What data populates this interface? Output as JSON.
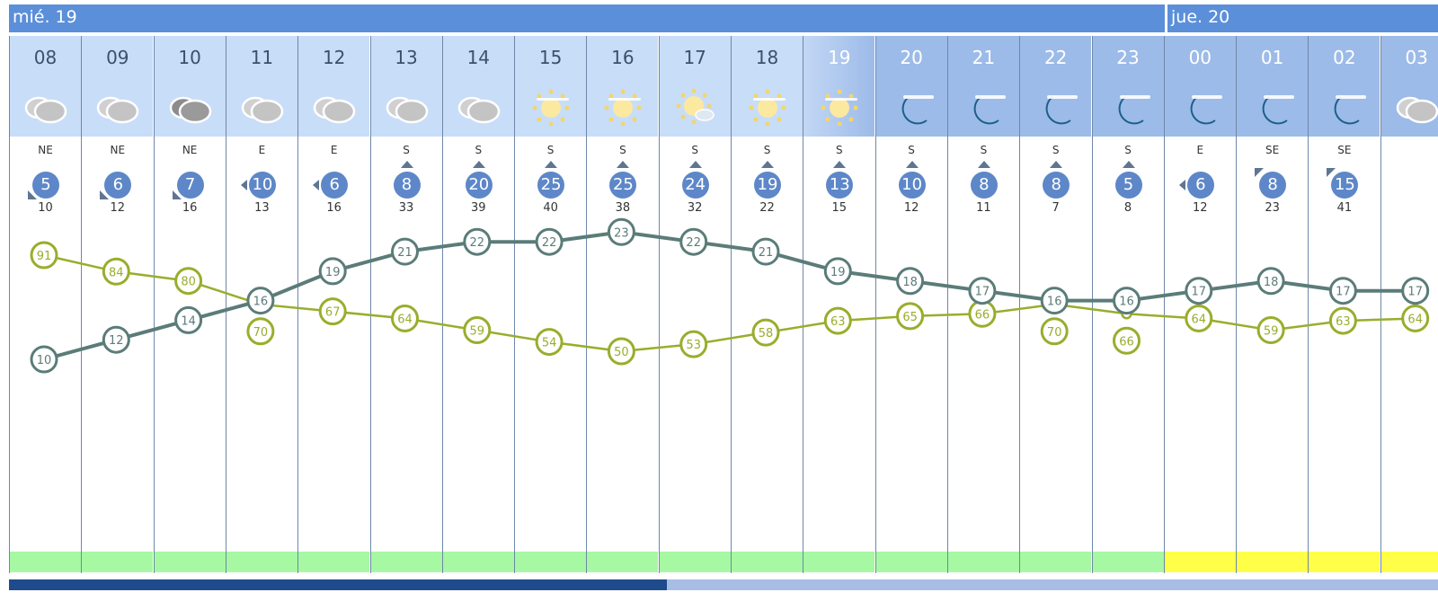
{
  "days": [
    {
      "label": "mié. 19"
    },
    {
      "label": "jue. 20"
    }
  ],
  "hours": [
    {
      "hour": "08",
      "icon": "cloudy-icon",
      "phase": "day",
      "dir": "NE",
      "speed": "5",
      "gust": "10",
      "temp": 10,
      "humidity": 91,
      "risk": "green"
    },
    {
      "hour": "09",
      "icon": "cloudy-icon",
      "phase": "day",
      "dir": "NE",
      "speed": "6",
      "gust": "12",
      "temp": 12,
      "humidity": 84,
      "risk": "green"
    },
    {
      "hour": "10",
      "icon": "overcast-icon",
      "phase": "day",
      "dir": "NE",
      "speed": "7",
      "gust": "16",
      "temp": 14,
      "humidity": 80,
      "risk": "green"
    },
    {
      "hour": "11",
      "icon": "cloudy-icon",
      "phase": "day",
      "dir": "E",
      "speed": "10",
      "gust": "13",
      "temp": 16,
      "humidity": 70,
      "risk": "green"
    },
    {
      "hour": "12",
      "icon": "cloudy-icon",
      "phase": "day",
      "dir": "E",
      "speed": "6",
      "gust": "16",
      "temp": 19,
      "humidity": 67,
      "risk": "green"
    },
    {
      "hour": "13",
      "icon": "cloudy-icon",
      "phase": "day",
      "dir": "S",
      "speed": "8",
      "gust": "33",
      "temp": 21,
      "humidity": 64,
      "risk": "green"
    },
    {
      "hour": "14",
      "icon": "cloudy-icon",
      "phase": "day",
      "dir": "S",
      "speed": "20",
      "gust": "39",
      "temp": 22,
      "humidity": 59,
      "risk": "green"
    },
    {
      "hour": "15",
      "icon": "hazy-sun-icon",
      "phase": "day",
      "dir": "S",
      "speed": "25",
      "gust": "40",
      "temp": 22,
      "humidity": 54,
      "risk": "green"
    },
    {
      "hour": "16",
      "icon": "hazy-sun-icon",
      "phase": "day",
      "dir": "S",
      "speed": "25",
      "gust": "38",
      "temp": 23,
      "humidity": 50,
      "risk": "green"
    },
    {
      "hour": "17",
      "icon": "sun-cloud-icon",
      "phase": "day",
      "dir": "S",
      "speed": "24",
      "gust": "32",
      "temp": 22,
      "humidity": 53,
      "risk": "green"
    },
    {
      "hour": "18",
      "icon": "hazy-sun-icon",
      "phase": "day",
      "dir": "S",
      "speed": "19",
      "gust": "22",
      "temp": 21,
      "humidity": 58,
      "risk": "green"
    },
    {
      "hour": "19",
      "icon": "hazy-sun-icon",
      "phase": "dusk",
      "dir": "S",
      "speed": "13",
      "gust": "15",
      "temp": 19,
      "humidity": 63,
      "risk": "green"
    },
    {
      "hour": "20",
      "icon": "hazy-moon-icon",
      "phase": "night",
      "dir": "S",
      "speed": "10",
      "gust": "12",
      "temp": 18,
      "humidity": 65,
      "risk": "green"
    },
    {
      "hour": "21",
      "icon": "hazy-moon-icon",
      "phase": "night",
      "dir": "S",
      "speed": "8",
      "gust": "11",
      "temp": 17,
      "humidity": 66,
      "risk": "green"
    },
    {
      "hour": "22",
      "icon": "hazy-moon-icon",
      "phase": "night",
      "dir": "S",
      "speed": "8",
      "gust": "7",
      "temp": 16,
      "humidity": 70,
      "risk": "green"
    },
    {
      "hour": "23",
      "icon": "hazy-moon-icon",
      "phase": "night",
      "dir": "S",
      "speed": "5",
      "gust": "8",
      "temp": 16,
      "humidity": 66,
      "risk": "green"
    },
    {
      "hour": "00",
      "icon": "hazy-moon-icon",
      "phase": "night",
      "dir": "E",
      "speed": "6",
      "gust": "12",
      "temp": 17,
      "humidity": 64,
      "risk": "yellow"
    },
    {
      "hour": "01",
      "icon": "hazy-moon-icon",
      "phase": "night",
      "dir": "SE",
      "speed": "8",
      "gust": "23",
      "temp": 18,
      "humidity": 59,
      "risk": "yellow"
    },
    {
      "hour": "02",
      "icon": "hazy-moon-icon",
      "phase": "night",
      "dir": "SE",
      "speed": "15",
      "gust": "41",
      "temp": 17,
      "humidity": 63,
      "risk": "yellow"
    },
    {
      "hour": "03",
      "icon": "cloudy-icon",
      "phase": "night",
      "dir": "",
      "speed": "",
      "gust": "",
      "temp": 17,
      "humidity": 64,
      "risk": "yellow"
    }
  ],
  "colors": {
    "temperature": "#5b7c79",
    "humidity": "#9aad2c",
    "day_header": "#c8ddf8",
    "night_header": "#9dbbe8",
    "day_bar": "#5b8fd9",
    "wind_badge": "#5d87c8",
    "risk_green": "#a6f8a2",
    "risk_yellow": "#ffff48"
  },
  "scrollbar": {
    "position_fraction": 0.46
  }
}
